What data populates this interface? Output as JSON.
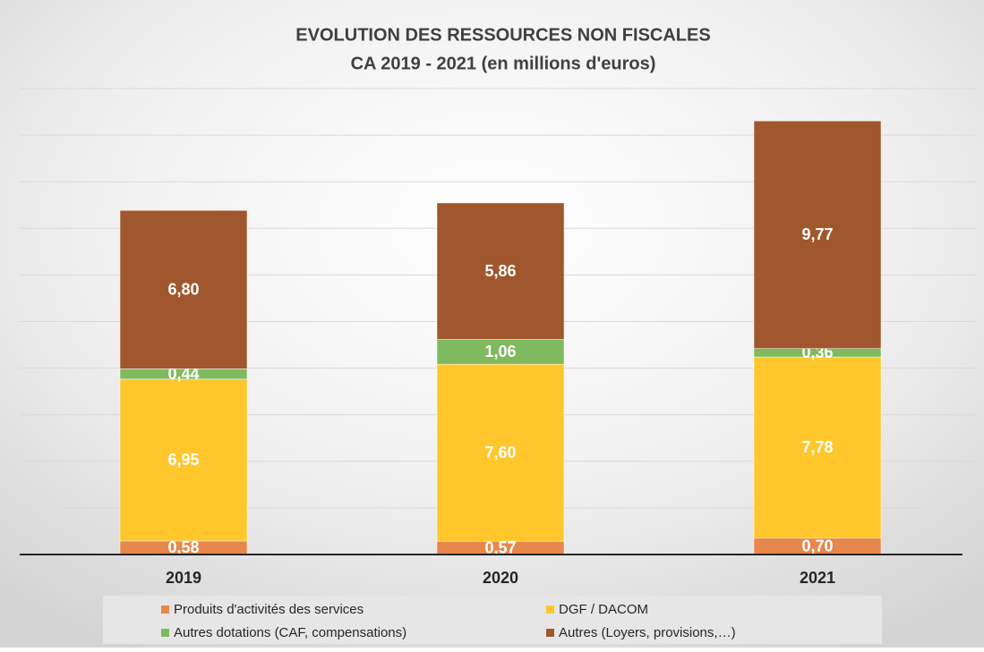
{
  "chart_data": {
    "type": "stacked_bar",
    "title": "EVOLUTION DES RESSOURCES NON FISCALES",
    "subtitle": "CA 2019 - 2021 (en millions  d'euros)",
    "categories": [
      "2019",
      "2020",
      "2021"
    ],
    "series": [
      {
        "name": "Produits d'activités des services",
        "color": "#e8874c",
        "values": [
          0.58,
          0.57,
          0.7
        ],
        "value_labels": [
          "0,58",
          "0,57",
          "0,70"
        ]
      },
      {
        "name": "DGF / DACOM",
        "color": "#ffc72c",
        "values": [
          6.95,
          7.6,
          7.78
        ],
        "value_labels": [
          "6,95",
          "7,60",
          "7,78"
        ]
      },
      {
        "name": "Autres dotations (CAF, compensations)",
        "color": "#7fba5e",
        "values": [
          0.44,
          1.06,
          0.36
        ],
        "value_labels": [
          "0,44",
          "1,06",
          "0,36"
        ]
      },
      {
        "name": "Autres (Loyers, provisions,…)",
        "color": "#a0572d",
        "values": [
          6.8,
          5.86,
          9.77
        ],
        "value_labels": [
          "6,80",
          "5,86",
          "9,77"
        ]
      }
    ],
    "ylim": [
      0,
      20
    ],
    "yticks": [
      0,
      2,
      4,
      6,
      8,
      10,
      12,
      14,
      16,
      18,
      20
    ],
    "grid": true,
    "legend": "bottom"
  }
}
